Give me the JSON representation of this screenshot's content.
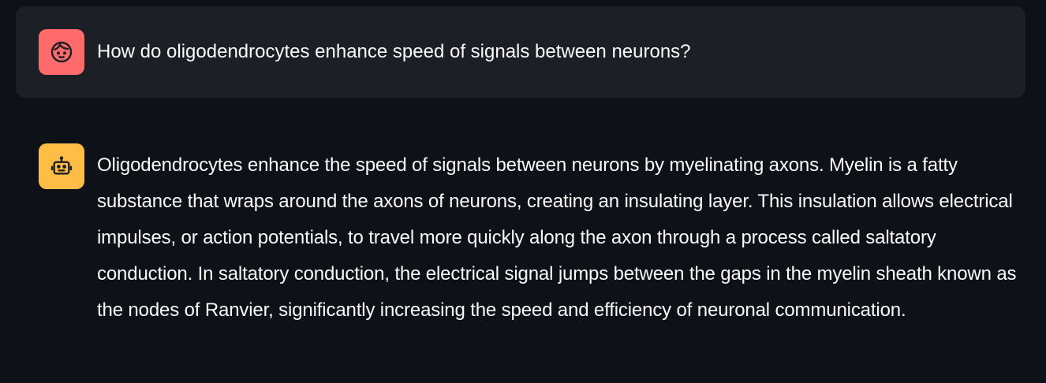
{
  "messages": {
    "user": {
      "avatar_icon": "user-face-icon",
      "avatar_color": "#ff6b6b",
      "text": "How do oligodendrocytes enhance speed of signals between neurons?"
    },
    "assistant": {
      "avatar_icon": "robot-icon",
      "avatar_color": "#ffbd45",
      "text": "Oligodendrocytes enhance the speed of signals between neurons by myelinating axons. Myelin is a fatty substance that wraps around the axons of neurons, creating an insulating layer. This insulation allows electrical impulses, or action potentials, to travel more quickly along the axon through a process called saltatory conduction. In saltatory conduction, the electrical signal jumps between the gaps in the myelin sheath known as the nodes of Ranvier, significantly increasing the speed and efficiency of neuronal communication."
    }
  },
  "colors": {
    "background": "#0e1117",
    "user_bubble": "#1c1f26",
    "text": "#fafafa"
  }
}
